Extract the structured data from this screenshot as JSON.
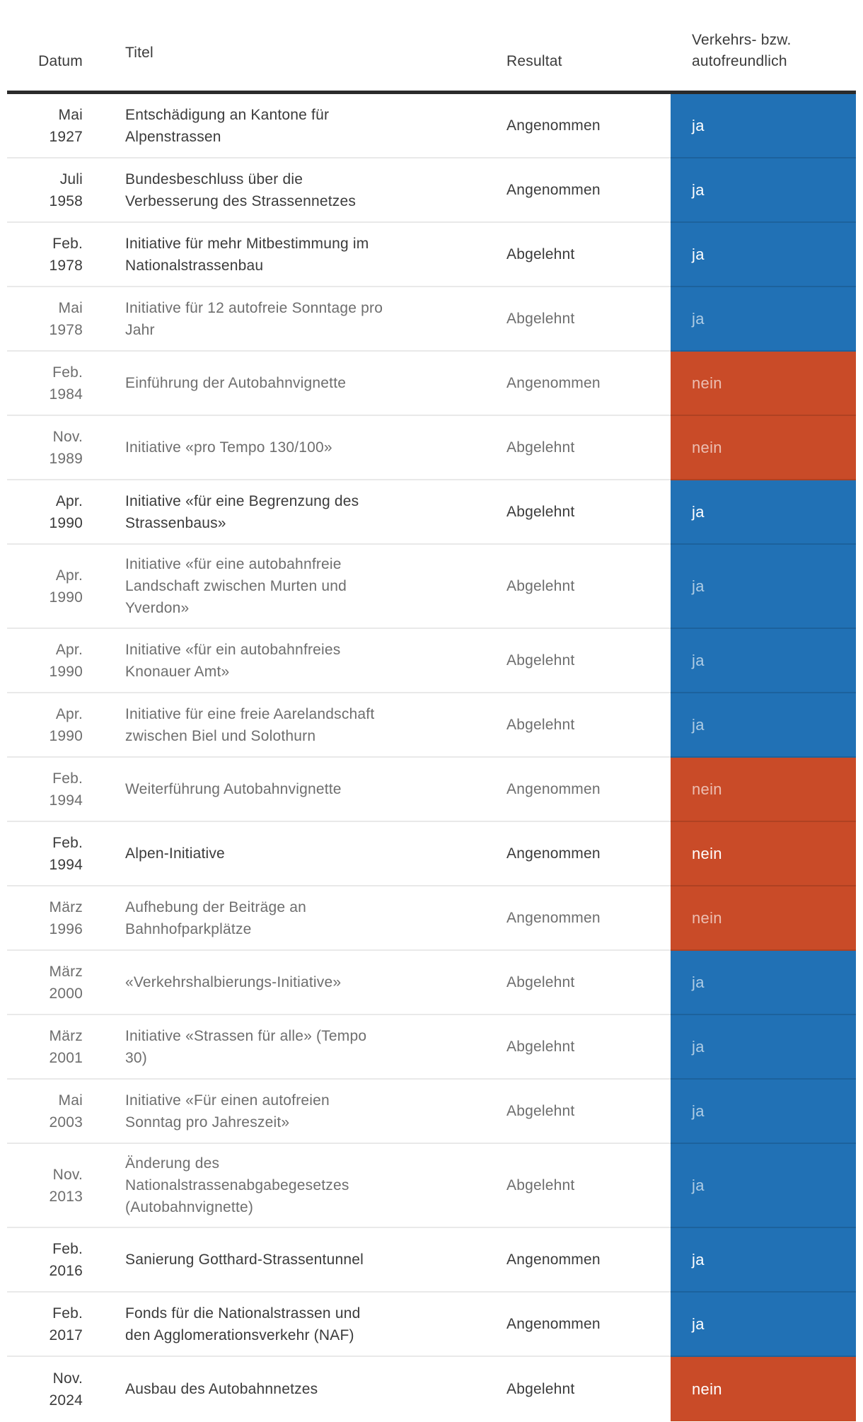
{
  "colors": {
    "blue": "#2171b5",
    "red": "#c94b28",
    "header_rule": "#2b2b2b",
    "divider": "#e9e9e9",
    "text_emphasized": "#3b3b3b",
    "text_dimmed": "#6e6e6e"
  },
  "chart_data": {
    "type": "table",
    "columns": [
      "Datum",
      "Titel",
      "Resultat",
      [
        "Verkehrs- bzw.",
        "autofreundlich"
      ]
    ],
    "rows": [
      {
        "date": [
          "Mai",
          "1927"
        ],
        "title": [
          "Entschädigung an Kantone für",
          "Alpenstrassen"
        ],
        "result": "Angenommen",
        "verdict": "ja",
        "verdict_color": "blue",
        "emphasized": true
      },
      {
        "date": [
          "Juli",
          "1958"
        ],
        "title": [
          "Bundesbeschluss über die",
          "Verbesserung des Strassennetzes"
        ],
        "result": "Angenommen",
        "verdict": "ja",
        "verdict_color": "blue",
        "emphasized": true
      },
      {
        "date": [
          "Feb.",
          "1978"
        ],
        "title": [
          "Initiative für mehr Mitbestimmung im",
          "Nationalstrassenbau"
        ],
        "result": "Abgelehnt",
        "verdict": "ja",
        "verdict_color": "blue",
        "emphasized": true
      },
      {
        "date": [
          "Mai",
          "1978"
        ],
        "title": [
          "Initiative für 12 autofreie Sonntage pro",
          "Jahr"
        ],
        "result": "Abgelehnt",
        "verdict": "ja",
        "verdict_color": "blue",
        "emphasized": false
      },
      {
        "date": [
          "Feb.",
          "1984"
        ],
        "title": [
          "Einführung der Autobahnvignette"
        ],
        "result": "Angenommen",
        "verdict": "nein",
        "verdict_color": "red",
        "emphasized": false
      },
      {
        "date": [
          "Nov.",
          "1989"
        ],
        "title": [
          "Initiative «pro Tempo 130/100»"
        ],
        "result": "Abgelehnt",
        "verdict": "nein",
        "verdict_color": "red",
        "emphasized": false
      },
      {
        "date": [
          "Apr.",
          "1990"
        ],
        "title": [
          "Initiative «für eine Begrenzung des",
          "Strassenbaus»"
        ],
        "result": "Abgelehnt",
        "verdict": "ja",
        "verdict_color": "blue",
        "emphasized": true
      },
      {
        "date": [
          "Apr.",
          "1990"
        ],
        "title": [
          "Initiative «für eine autobahnfreie",
          "Landschaft zwischen Murten und",
          "Yverdon»"
        ],
        "result": "Abgelehnt",
        "verdict": "ja",
        "verdict_color": "blue",
        "emphasized": false
      },
      {
        "date": [
          "Apr.",
          "1990"
        ],
        "title": [
          "Initiative «für ein autobahnfreies",
          "Knonauer Amt»"
        ],
        "result": "Abgelehnt",
        "verdict": "ja",
        "verdict_color": "blue",
        "emphasized": false
      },
      {
        "date": [
          "Apr.",
          "1990"
        ],
        "title": [
          "Initiative für eine freie Aarelandschaft",
          "zwischen Biel und Solothurn"
        ],
        "result": "Abgelehnt",
        "verdict": "ja",
        "verdict_color": "blue",
        "emphasized": false
      },
      {
        "date": [
          "Feb.",
          "1994"
        ],
        "title": [
          "Weiterführung Autobahnvignette"
        ],
        "result": "Angenommen",
        "verdict": "nein",
        "verdict_color": "red",
        "emphasized": false
      },
      {
        "date": [
          "Feb.",
          "1994"
        ],
        "title": [
          "Alpen-Initiative"
        ],
        "result": "Angenommen",
        "verdict": "nein",
        "verdict_color": "red",
        "emphasized": true
      },
      {
        "date": [
          "März",
          "1996"
        ],
        "title": [
          "Aufhebung der Beiträge an",
          "Bahnhofparkplätze"
        ],
        "result": "Angenommen",
        "verdict": "nein",
        "verdict_color": "red",
        "emphasized": false
      },
      {
        "date": [
          "März",
          "2000"
        ],
        "title": [
          "«Verkehrshalbierungs-Initiative»"
        ],
        "result": "Abgelehnt",
        "verdict": "ja",
        "verdict_color": "blue",
        "emphasized": false
      },
      {
        "date": [
          "März",
          "2001"
        ],
        "title": [
          "Initiative «Strassen für alle» (Tempo",
          "30)"
        ],
        "result": "Abgelehnt",
        "verdict": "ja",
        "verdict_color": "blue",
        "emphasized": false
      },
      {
        "date": [
          "Mai",
          "2003"
        ],
        "title": [
          "Initiative «Für einen autofreien",
          "Sonntag pro Jahreszeit»"
        ],
        "result": "Abgelehnt",
        "verdict": "ja",
        "verdict_color": "blue",
        "emphasized": false
      },
      {
        "date": [
          "Nov.",
          "2013"
        ],
        "title": [
          "Änderung des",
          "Nationalstrassenabgabegesetzes",
          "(Autobahnvignette)"
        ],
        "result": "Abgelehnt",
        "verdict": "ja",
        "verdict_color": "blue",
        "emphasized": false
      },
      {
        "date": [
          "Feb.",
          "2016"
        ],
        "title": [
          "Sanierung Gotthard-Strassentunnel"
        ],
        "result": "Angenommen",
        "verdict": "ja",
        "verdict_color": "blue",
        "emphasized": true
      },
      {
        "date": [
          "Feb.",
          "2017"
        ],
        "title": [
          "Fonds für die Nationalstrassen und",
          "den Agglomerationsverkehr (NAF)"
        ],
        "result": "Angenommen",
        "verdict": "ja",
        "verdict_color": "blue",
        "emphasized": true
      },
      {
        "date": [
          "Nov.",
          "2024"
        ],
        "title": [
          "Ausbau des Autobahnnetzes"
        ],
        "result": "Abgelehnt",
        "verdict": "nein",
        "verdict_color": "red",
        "emphasized": true
      }
    ]
  }
}
